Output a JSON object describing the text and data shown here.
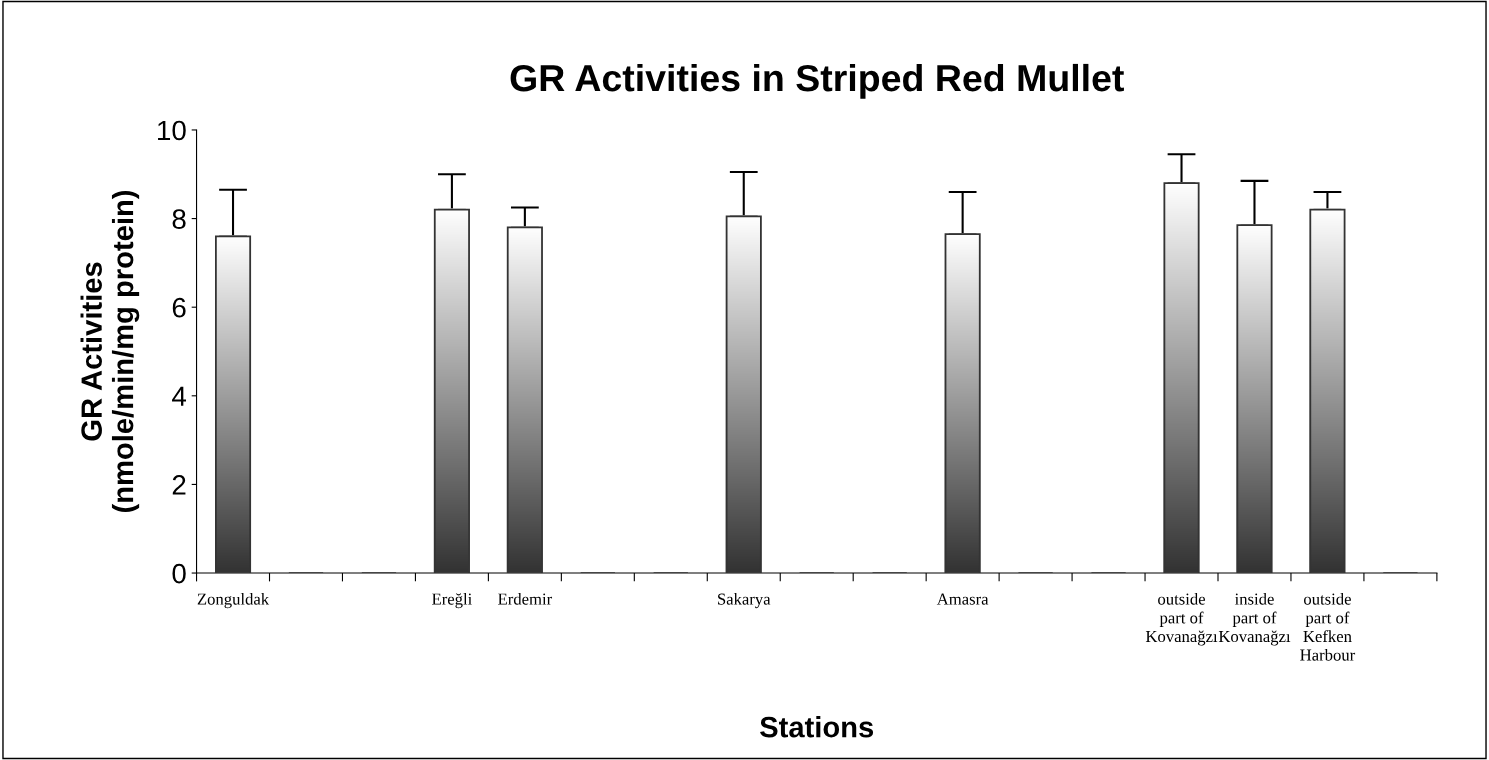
{
  "chart_data": {
    "type": "bar",
    "title": "GR Activities in Striped Red Mullet",
    "xlabel": "Stations",
    "ylabel": "GR Activities\n(nmole/min/mg protein)",
    "categories": [
      "Zonguldak",
      null,
      null,
      "Ereğli",
      "Erdemir",
      null,
      null,
      "Sakarya",
      null,
      null,
      "Amasra",
      null,
      null,
      "outside\npart of\nKovanağzı",
      "inside\npart of\nKovanağzı",
      "outside\npart of\nKefken\nHarbour",
      null
    ],
    "values": [
      7.6,
      0,
      0,
      8.2,
      7.8,
      0,
      0,
      8.05,
      0,
      0,
      7.65,
      0,
      0,
      8.8,
      7.85,
      8.2,
      0
    ],
    "errors": [
      [
        7.6,
        8.65
      ],
      null,
      null,
      [
        8.2,
        9.0
      ],
      [
        7.8,
        8.25
      ],
      null,
      null,
      [
        8.05,
        9.05
      ],
      null,
      null,
      [
        7.65,
        8.6
      ],
      null,
      null,
      [
        8.8,
        9.45
      ],
      [
        7.85,
        8.85
      ],
      [
        8.2,
        8.6
      ],
      null
    ],
    "color": "#333333",
    "ylim": [
      0,
      10
    ],
    "yticks": [
      0,
      2,
      4,
      6,
      8,
      10
    ],
    "grid": false,
    "legend": false
  }
}
